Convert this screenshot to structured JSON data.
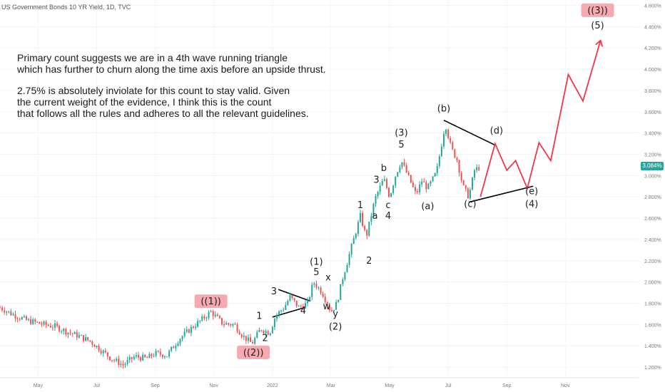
{
  "title": "US Government Bonds 10 YR Yield, 1D, TVC",
  "annotation": {
    "paragraph1": "Primary count suggests we are in a 4th wave running triangle\nwhich has further to churn along the time axis before an upside thrust.",
    "paragraph2": "2.75% is absolutely inviolate for this count to stay valid. Given\nthe current weight of the evidence, I think this is the count\nthat follows all the rules and adheres to all the relevant guidelines."
  },
  "last_price": "3.084%",
  "colors": {
    "up": "#26a69a",
    "down": "#ef5350",
    "projection": "#f23645",
    "highlight": "#f7a9b0",
    "price_badge": "#26a69a"
  },
  "chart_data": {
    "type": "line",
    "instrument": "US Government Bonds 10 YR Yield",
    "timeframe": "1D",
    "x_tick_labels": [
      "May",
      "Jul",
      "Sep",
      "Nov",
      "2022",
      "Mar",
      "May",
      "Jul",
      "Sep",
      "Nov"
    ],
    "x_tick_month_index": [
      0,
      2,
      4,
      6,
      8,
      10,
      12,
      14,
      16,
      18
    ],
    "y_tick_labels": [
      "1.200%",
      "1.400%",
      "1.600%",
      "1.800%",
      "2.000%",
      "2.200%",
      "2.400%",
      "2.600%",
      "2.800%",
      "3.000%",
      "3.200%",
      "3.400%",
      "3.600%",
      "3.800%",
      "4.000%",
      "4.200%",
      "4.400%",
      "4.600%"
    ],
    "ylim": [
      1.1,
      4.65
    ],
    "xlim_month_index": [
      -1.3,
      20.5
    ],
    "series": [
      {
        "kind": "price",
        "points": [
          [
            -1.3,
            1.76
          ],
          [
            -0.9,
            1.7
          ],
          [
            -0.4,
            1.64
          ],
          [
            0.2,
            1.6
          ],
          [
            0.6,
            1.58
          ],
          [
            1.0,
            1.53
          ],
          [
            1.4,
            1.49
          ],
          [
            1.8,
            1.44
          ],
          [
            2.1,
            1.37
          ],
          [
            2.5,
            1.28
          ],
          [
            2.9,
            1.22
          ],
          [
            3.3,
            1.3
          ],
          [
            3.7,
            1.28
          ],
          [
            4.0,
            1.33
          ],
          [
            4.4,
            1.31
          ],
          [
            4.8,
            1.46
          ],
          [
            5.2,
            1.56
          ],
          [
            5.6,
            1.65
          ],
          [
            5.9,
            1.72
          ],
          [
            6.3,
            1.61
          ],
          [
            6.7,
            1.6
          ],
          [
            7.0,
            1.49
          ],
          [
            7.3,
            1.42
          ],
          [
            7.6,
            1.56
          ],
          [
            7.9,
            1.52
          ],
          [
            8.1,
            1.68
          ],
          [
            8.4,
            1.76
          ],
          [
            8.6,
            1.86
          ],
          [
            8.9,
            1.76
          ],
          [
            9.2,
            1.8
          ],
          [
            9.4,
            2.0
          ],
          [
            9.7,
            1.9
          ],
          [
            10.0,
            1.72
          ],
          [
            10.2,
            1.8
          ],
          [
            10.4,
            2.04
          ],
          [
            10.7,
            2.33
          ],
          [
            11.0,
            2.62
          ],
          [
            11.2,
            2.42
          ],
          [
            11.5,
            2.78
          ],
          [
            11.8,
            2.97
          ],
          [
            12.0,
            2.8
          ],
          [
            12.2,
            3.0
          ],
          [
            12.4,
            3.14
          ],
          [
            12.7,
            2.95
          ],
          [
            12.9,
            2.82
          ],
          [
            13.1,
            2.95
          ],
          [
            13.3,
            2.88
          ],
          [
            13.6,
            3.03
          ],
          [
            13.9,
            3.49
          ],
          [
            14.1,
            3.26
          ],
          [
            14.3,
            3.15
          ],
          [
            14.5,
            2.9
          ],
          [
            14.7,
            2.8
          ],
          [
            14.9,
            3.05
          ],
          [
            15.1,
            3.084
          ]
        ]
      },
      {
        "kind": "projection",
        "points": [
          [
            15.1,
            2.8
          ],
          [
            15.6,
            3.3
          ],
          [
            16.0,
            3.05
          ],
          [
            16.3,
            3.14
          ],
          [
            16.7,
            2.88
          ],
          [
            17.1,
            3.31
          ],
          [
            17.5,
            3.14
          ],
          [
            18.1,
            3.95
          ],
          [
            18.6,
            3.7
          ],
          [
            19.2,
            4.27
          ]
        ]
      }
    ],
    "trendlines": [
      [
        [
          13.85,
          3.52
        ],
        [
          15.65,
          3.28
        ]
      ],
      [
        [
          14.7,
          2.75
        ],
        [
          16.9,
          2.9
        ]
      ],
      [
        [
          8.2,
          1.93
        ],
        [
          9.3,
          1.82
        ]
      ],
      [
        [
          8.0,
          1.67
        ],
        [
          9.1,
          1.76
        ]
      ]
    ],
    "wave_labels": [
      {
        "text": "((1))",
        "x": 5.9,
        "y": 1.795,
        "boxed": true
      },
      {
        "text": "((2))",
        "x": 7.35,
        "y": 1.315,
        "boxed": true
      },
      {
        "text": "((3))",
        "x": 19.1,
        "y": 4.53,
        "boxed": true
      },
      {
        "text": "1",
        "x": 7.55,
        "y": 1.66,
        "boxed": false
      },
      {
        "text": "2",
        "x": 7.75,
        "y": 1.45,
        "boxed": false
      },
      {
        "text": "3",
        "x": 8.05,
        "y": 1.89,
        "boxed": false
      },
      {
        "text": "4",
        "x": 9.05,
        "y": 1.71,
        "boxed": false
      },
      {
        "text": "(1)",
        "x": 9.5,
        "y": 2.17,
        "boxed": false
      },
      {
        "text": "5",
        "x": 9.5,
        "y": 2.07,
        "boxed": false
      },
      {
        "text": "x",
        "x": 9.9,
        "y": 2.02,
        "boxed": false
      },
      {
        "text": "w",
        "x": 9.85,
        "y": 1.75,
        "boxed": false
      },
      {
        "text": "y",
        "x": 10.15,
        "y": 1.68,
        "boxed": false
      },
      {
        "text": "(2)",
        "x": 10.15,
        "y": 1.56,
        "boxed": false
      },
      {
        "text": "1",
        "x": 11.0,
        "y": 2.7,
        "boxed": false
      },
      {
        "text": "2",
        "x": 11.3,
        "y": 2.18,
        "boxed": false
      },
      {
        "text": "3",
        "x": 11.55,
        "y": 2.94,
        "boxed": false
      },
      {
        "text": "a",
        "x": 11.5,
        "y": 2.6,
        "boxed": false
      },
      {
        "text": "b",
        "x": 11.8,
        "y": 3.05,
        "boxed": false
      },
      {
        "text": "c",
        "x": 11.95,
        "y": 2.7,
        "boxed": false
      },
      {
        "text": "4",
        "x": 11.95,
        "y": 2.6,
        "boxed": false
      },
      {
        "text": "(3)",
        "x": 12.4,
        "y": 3.38,
        "boxed": false
      },
      {
        "text": "5",
        "x": 12.4,
        "y": 3.27,
        "boxed": false
      },
      {
        "text": "(a)",
        "x": 13.3,
        "y": 2.69,
        "boxed": false
      },
      {
        "text": "(b)",
        "x": 13.85,
        "y": 3.61,
        "boxed": false
      },
      {
        "text": "(c)",
        "x": 14.75,
        "y": 2.71,
        "boxed": false
      },
      {
        "text": "(d)",
        "x": 15.65,
        "y": 3.4,
        "boxed": false
      },
      {
        "text": "(e)",
        "x": 16.85,
        "y": 2.83,
        "boxed": false
      },
      {
        "text": "(4)",
        "x": 16.85,
        "y": 2.71,
        "boxed": false
      },
      {
        "text": "(5)",
        "x": 19.1,
        "y": 4.39,
        "boxed": false
      }
    ]
  }
}
